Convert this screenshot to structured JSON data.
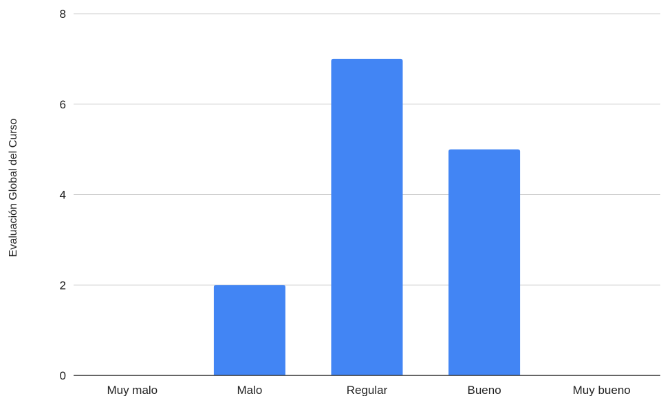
{
  "chart_data": {
    "type": "bar",
    "categories": [
      "Muy malo",
      "Malo",
      "Regular",
      "Bueno",
      "Muy bueno"
    ],
    "values": [
      0,
      2,
      7,
      5,
      0
    ],
    "ylabel": "Evaluación Global del Curso",
    "xlabel": "",
    "ylim": [
      0,
      8
    ],
    "yticks": [
      0,
      2,
      4,
      6,
      8
    ],
    "grid": true,
    "colors": {
      "bar": "#4285f4"
    }
  }
}
